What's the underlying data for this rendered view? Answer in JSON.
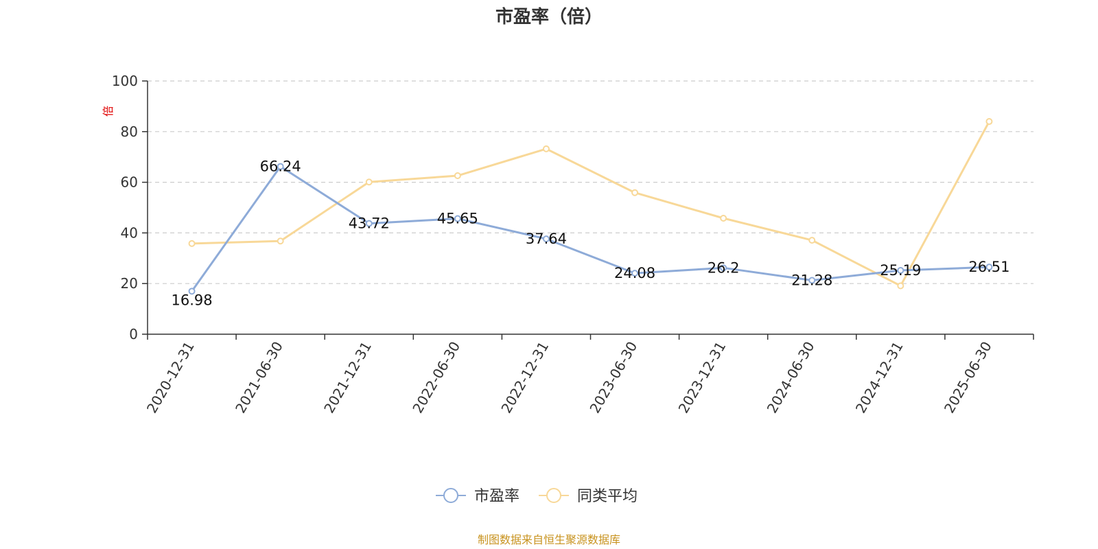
{
  "colors": {
    "pe": "#8eabd8",
    "avg": "#f8d898",
    "grid": "#cccccc",
    "axis": "#333333",
    "unit": "#e00000",
    "source": "#c8931f"
  },
  "legend": [
    {
      "name": "市盈率",
      "color": "#8eabd8"
    },
    {
      "name": "同类平均",
      "color": "#f8d898"
    }
  ],
  "source_text": "制图数据来自恒生聚源数据库",
  "chart_data": {
    "type": "line",
    "title": "市盈率（倍）",
    "ylabel": "倍",
    "xlabel": "",
    "ylim": [
      0,
      100
    ],
    "yticks": [
      0,
      20,
      40,
      60,
      80,
      100
    ],
    "grid": true,
    "legend_position": "bottom-center",
    "categories": [
      "2020-12-31",
      "2021-06-30",
      "2021-12-31",
      "2022-06-30",
      "2022-12-31",
      "2023-06-30",
      "2023-12-31",
      "2024-06-30",
      "2024-12-31",
      "2025-06-30"
    ],
    "series": [
      {
        "name": "市盈率",
        "values": [
          16.98,
          66.24,
          43.72,
          45.65,
          37.64,
          24.08,
          26.2,
          21.28,
          25.19,
          26.51
        ],
        "labels": [
          "16.98",
          "66.24",
          "43.72",
          "45.65",
          "37.64",
          "24.08",
          "26.2",
          "21.28",
          "25.19",
          "26.51"
        ],
        "color": "#8eabd8"
      },
      {
        "name": "同类平均",
        "values": [
          35.8,
          36.8,
          60.1,
          62.6,
          73.2,
          55.9,
          45.8,
          37.1,
          19.1,
          84.0
        ],
        "color": "#f8d898"
      }
    ]
  }
}
